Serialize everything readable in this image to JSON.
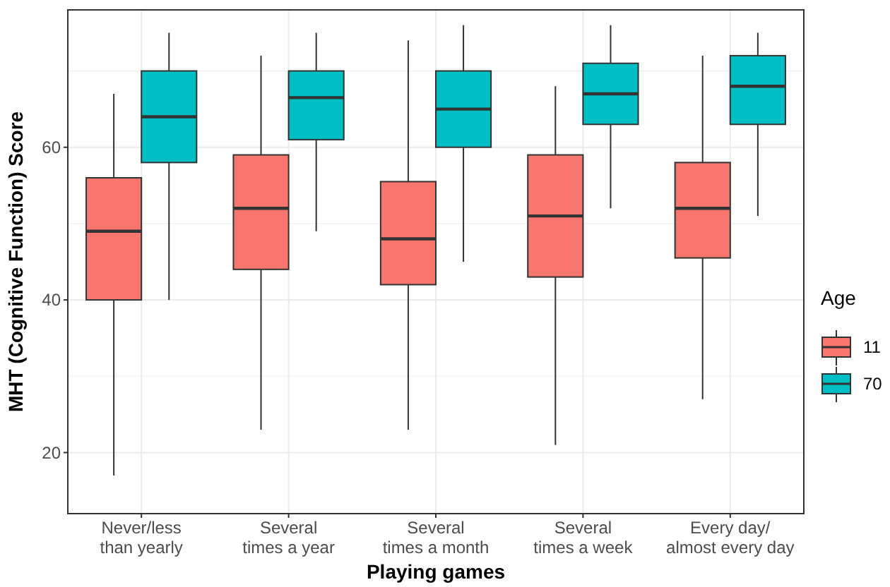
{
  "chart_data": {
    "type": "box",
    "xlabel": "Playing games",
    "ylabel": "MHT (Cognitive Function) Score",
    "legend_title": "Age",
    "legend": "right",
    "grid": true,
    "categories": [
      "Never/less\nthan yearly",
      "Several\ntimes a year",
      "Several\ntimes a month",
      "Several\ntimes a week",
      "Every day/\nalmost every day"
    ],
    "ylim": [
      12,
      78
    ],
    "yticks": [
      20,
      40,
      60
    ],
    "series": [
      {
        "name": "11",
        "color": "#f8766d",
        "boxes": [
          {
            "low": 17,
            "q1": 40,
            "median": 49,
            "q3": 56,
            "high": 67
          },
          {
            "low": 23,
            "q1": 44,
            "median": 52,
            "q3": 59,
            "high": 72
          },
          {
            "low": 23,
            "q1": 42,
            "median": 48,
            "q3": 55.5,
            "high": 74
          },
          {
            "low": 21,
            "q1": 43,
            "median": 51,
            "q3": 59,
            "high": 68
          },
          {
            "low": 27,
            "q1": 45.5,
            "median": 52,
            "q3": 58,
            "high": 72
          }
        ]
      },
      {
        "name": "70",
        "color": "#00bfc4",
        "boxes": [
          {
            "low": 40,
            "q1": 58,
            "median": 64,
            "q3": 70,
            "high": 75
          },
          {
            "low": 49,
            "q1": 61,
            "median": 66.5,
            "q3": 70,
            "high": 75
          },
          {
            "low": 45,
            "q1": 60,
            "median": 65,
            "q3": 70,
            "high": 76
          },
          {
            "low": 52,
            "q1": 63,
            "median": 67,
            "q3": 71,
            "high": 76
          },
          {
            "low": 51,
            "q1": 63,
            "median": 68,
            "q3": 72,
            "high": 75
          }
        ]
      }
    ]
  }
}
